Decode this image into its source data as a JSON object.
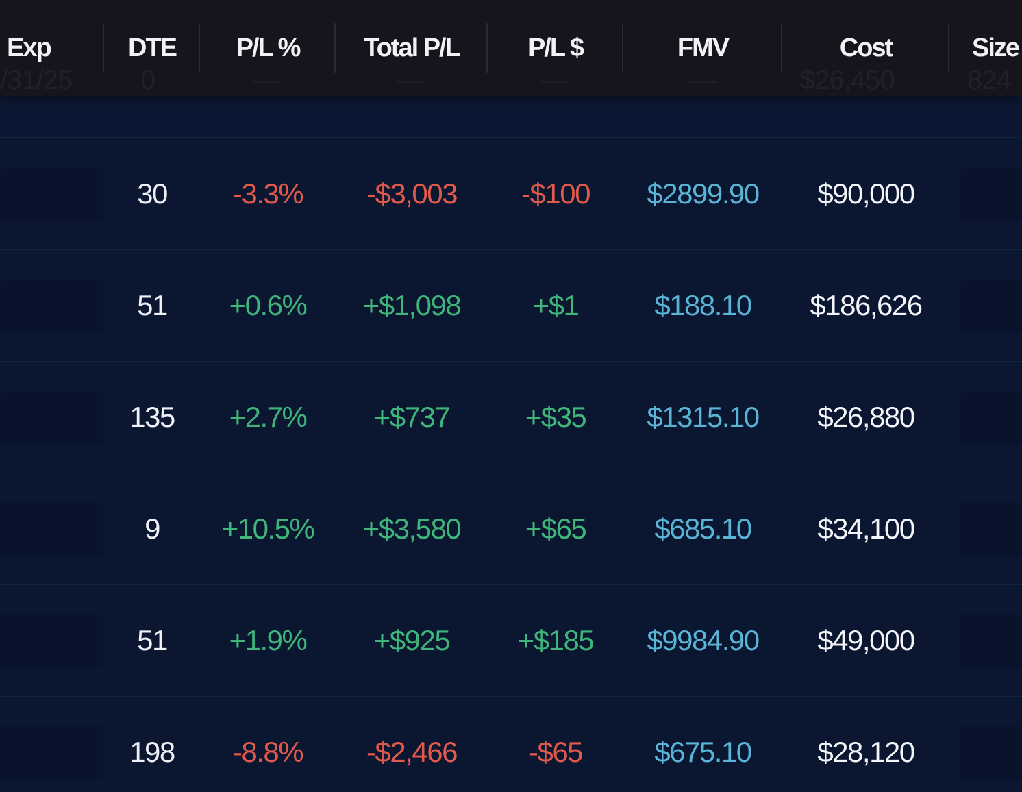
{
  "colors": {
    "header_bg": "#16141c",
    "body_bg": "#0b1631",
    "negative": "#e05a4c",
    "positive": "#3fb57a",
    "fmv": "#5ab4d6",
    "text": "#f2f2f5"
  },
  "header": {
    "columns": [
      "Exp",
      "DTE",
      "P/L %",
      "Total P/L",
      "P/L $",
      "FMV",
      "Cost",
      "Size"
    ],
    "ghost_row": {
      "exp": "/31/25",
      "dte": "0",
      "plp": "—",
      "tpl": "—",
      "pld": "—",
      "fmv": "—",
      "cost": "$26,450",
      "size": "824"
    }
  },
  "rows": [
    {
      "dte": "30",
      "pl_pct": "-3.3%",
      "total_pl": "-$3,003",
      "pl_dollar": "-$100",
      "fmv": "$2899.90",
      "cost": "$90,000",
      "sign": "neg"
    },
    {
      "dte": "51",
      "pl_pct": "+0.6%",
      "total_pl": "+$1,098",
      "pl_dollar": "+$1",
      "fmv": "$188.10",
      "cost": "$186,626",
      "sign": "pos"
    },
    {
      "dte": "135",
      "pl_pct": "+2.7%",
      "total_pl": "+$737",
      "pl_dollar": "+$35",
      "fmv": "$1315.10",
      "cost": "$26,880",
      "sign": "pos"
    },
    {
      "dte": "9",
      "pl_pct": "+10.5%",
      "total_pl": "+$3,580",
      "pl_dollar": "+$65",
      "fmv": "$685.10",
      "cost": "$34,100",
      "sign": "pos"
    },
    {
      "dte": "51",
      "pl_pct": "+1.9%",
      "total_pl": "+$925",
      "pl_dollar": "+$185",
      "fmv": "$9984.90",
      "cost": "$49,000",
      "sign": "pos"
    },
    {
      "dte": "198",
      "pl_pct": "-8.8%",
      "total_pl": "-$2,466",
      "pl_dollar": "-$65",
      "fmv": "$675.10",
      "cost": "$28,120",
      "sign": "neg"
    }
  ]
}
